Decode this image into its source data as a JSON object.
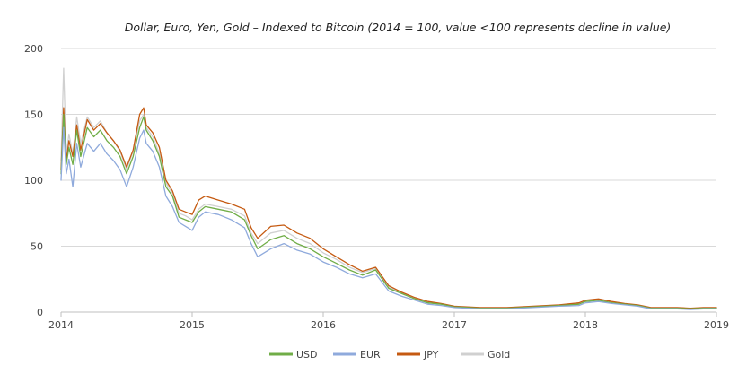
{
  "chart_data": {
    "type": "line",
    "title": "Dollar, Euro, Yen, Gold – Indexed to Bitcoin (2014 = 100, value <100 represents decline in value)",
    "xlabel": "",
    "ylabel": "",
    "xlim": [
      2014,
      2019
    ],
    "ylim": [
      0,
      200
    ],
    "x_ticks": [
      2014,
      2015,
      2016,
      2017,
      2018,
      2019
    ],
    "x_tick_labels": [
      "2014",
      "2015",
      "2016",
      "2017",
      "2018",
      "2019"
    ],
    "y_ticks": [
      0,
      50,
      100,
      150,
      200
    ],
    "y_tick_labels": [
      "0",
      "50",
      "100",
      "150",
      "200"
    ],
    "grid": "horizontal",
    "legend_position": "bottom",
    "x": [
      2014.0,
      2014.02,
      2014.04,
      2014.06,
      2014.09,
      2014.12,
      2014.15,
      2014.2,
      2014.25,
      2014.3,
      2014.35,
      2014.4,
      2014.45,
      2014.5,
      2014.55,
      2014.6,
      2014.63,
      2014.65,
      2014.7,
      2014.75,
      2014.8,
      2014.85,
      2014.9,
      2014.95,
      2015.0,
      2015.05,
      2015.1,
      2015.2,
      2015.3,
      2015.4,
      2015.45,
      2015.5,
      2015.6,
      2015.7,
      2015.8,
      2015.9,
      2016.0,
      2016.1,
      2016.2,
      2016.3,
      2016.4,
      2016.5,
      2016.6,
      2016.7,
      2016.8,
      2016.9,
      2017.0,
      2017.2,
      2017.4,
      2017.6,
      2017.8,
      2017.95,
      2018.0,
      2018.1,
      2018.2,
      2018.3,
      2018.4,
      2018.5,
      2018.6,
      2018.7,
      2018.8,
      2018.9,
      2019.0
    ],
    "series": [
      {
        "name": "USD",
        "color": "#70ad47",
        "values": [
          105,
          150,
          112,
          125,
          112,
          138,
          118,
          140,
          133,
          138,
          130,
          125,
          118,
          105,
          118,
          140,
          148,
          138,
          130,
          118,
          95,
          88,
          72,
          70,
          68,
          76,
          80,
          78,
          76,
          70,
          58,
          48,
          55,
          58,
          52,
          48,
          42,
          37,
          32,
          28,
          32,
          18,
          14,
          10,
          7,
          6,
          4,
          3,
          3,
          4,
          5,
          6,
          8,
          9,
          7,
          6,
          5,
          3,
          3,
          3,
          2.5,
          3,
          3
        ]
      },
      {
        "name": "EUR",
        "color": "#8faadc",
        "values": [
          100,
          140,
          105,
          116,
          95,
          128,
          110,
          128,
          122,
          128,
          120,
          115,
          108,
          95,
          110,
          132,
          138,
          128,
          122,
          110,
          88,
          80,
          68,
          65,
          62,
          72,
          76,
          74,
          70,
          64,
          52,
          42,
          48,
          52,
          47,
          44,
          38,
          34,
          29,
          26,
          29,
          16,
          12,
          9,
          6,
          5,
          3.5,
          2.5,
          2.5,
          3.5,
          4.5,
          5,
          7,
          8,
          6.5,
          5.5,
          4.5,
          2.5,
          2.5,
          2.5,
          2,
          2.5,
          2.5
        ]
      },
      {
        "name": "JPY",
        "color": "#c55a11",
        "values": [
          108,
          155,
          115,
          130,
          118,
          142,
          123,
          146,
          138,
          143,
          136,
          130,
          123,
          110,
          123,
          150,
          155,
          142,
          136,
          125,
          100,
          92,
          78,
          76,
          74,
          85,
          88,
          85,
          82,
          78,
          64,
          56,
          65,
          66,
          60,
          56,
          48,
          42,
          36,
          31,
          34,
          20,
          15,
          11,
          8,
          6.5,
          4.5,
          3.5,
          3.5,
          4.5,
          5.5,
          7,
          9,
          10,
          8,
          6.5,
          5.5,
          3.5,
          3.5,
          3.5,
          3,
          3.5,
          3.5
        ]
      },
      {
        "name": "Gold",
        "color": "#d0d0d0",
        "values": [
          115,
          185,
          120,
          135,
          120,
          148,
          128,
          148,
          140,
          145,
          136,
          130,
          122,
          108,
          122,
          145,
          150,
          140,
          133,
          120,
          98,
          90,
          75,
          73,
          70,
          78,
          82,
          80,
          78,
          73,
          60,
          52,
          60,
          62,
          56,
          52,
          45,
          40,
          34,
          30,
          33,
          19,
          14.5,
          10.5,
          7.5,
          6.2,
          4.2,
          3.2,
          3.2,
          4.2,
          5.2,
          6.5,
          8.5,
          9.5,
          7.5,
          6.2,
          5.2,
          3.2,
          3.2,
          3.2,
          2.8,
          3.2,
          3.2
        ]
      }
    ]
  }
}
